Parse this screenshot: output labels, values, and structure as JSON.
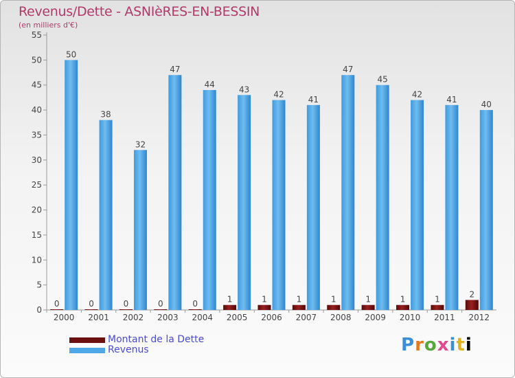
{
  "title": "Revenus/Dette - ASNIèRES-EN-BESSIN",
  "subtitle": "(en milliers d'€)",
  "logo_text": "Proxiti",
  "colors": {
    "debt": "#6b0f0f",
    "revenue": "#4ea7e6",
    "title": "#b03a6a",
    "legend_text": "#4a4ad8"
  },
  "legend": [
    {
      "label": "Montant de la Dette",
      "color": "#6b0f0f"
    },
    {
      "label": "Revenus",
      "color": "#4ea7e6"
    }
  ],
  "chart_data": {
    "type": "bar",
    "title": "Revenus/Dette - ASNIèRES-EN-BESSIN",
    "subtitle": "(en milliers d'€)",
    "categories": [
      "2000",
      "2001",
      "2002",
      "2003",
      "2004",
      "2005",
      "2006",
      "2007",
      "2008",
      "2009",
      "2010",
      "2011",
      "2012"
    ],
    "series": [
      {
        "name": "Montant de la Dette",
        "values": [
          0,
          0,
          0,
          0,
          0,
          1,
          1,
          1,
          1,
          1,
          1,
          1,
          2
        ]
      },
      {
        "name": "Revenus",
        "values": [
          50,
          38,
          32,
          47,
          44,
          43,
          42,
          41,
          47,
          45,
          42,
          41,
          40
        ]
      }
    ],
    "ylim": [
      0,
      55
    ],
    "yticks": [
      0,
      5,
      10,
      15,
      20,
      25,
      30,
      35,
      40,
      45,
      50,
      55
    ],
    "grid": false,
    "legend_position": "bottom-left"
  }
}
